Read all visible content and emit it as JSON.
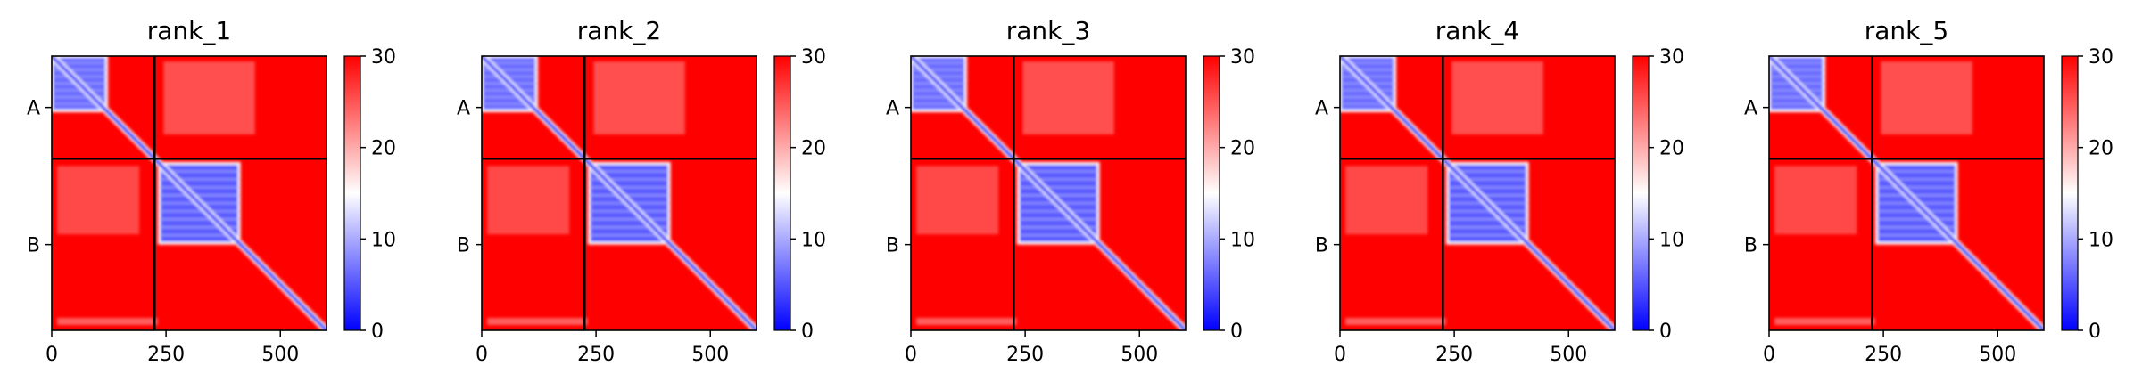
{
  "colors": {
    "low": "#0000ff",
    "mid": "#ffffff",
    "high": "#ff0000",
    "chain_line": "#000000"
  },
  "chart_data": [
    {
      "type": "heatmap",
      "title": "rank_1",
      "xticks": [
        0,
        250,
        500
      ],
      "xlim": [
        0,
        601
      ],
      "yticks": [
        "A",
        "B"
      ],
      "chains": [
        {
          "name": "A",
          "start": 0,
          "end": 225
        },
        {
          "name": "B",
          "start": 225,
          "end": 601
        }
      ],
      "chain_boundary": 225,
      "colorbar": {
        "min": 0,
        "max": 30,
        "ticks": [
          0,
          10,
          20,
          30
        ]
      }
    },
    {
      "type": "heatmap",
      "title": "rank_2",
      "xticks": [
        0,
        250,
        500
      ],
      "xlim": [
        0,
        601
      ],
      "yticks": [
        "A",
        "B"
      ],
      "chains": [
        {
          "name": "A",
          "start": 0,
          "end": 225
        },
        {
          "name": "B",
          "start": 225,
          "end": 601
        }
      ],
      "chain_boundary": 225,
      "colorbar": {
        "min": 0,
        "max": 30,
        "ticks": [
          0,
          10,
          20,
          30
        ]
      }
    },
    {
      "type": "heatmap",
      "title": "rank_3",
      "xticks": [
        0,
        250,
        500
      ],
      "xlim": [
        0,
        601
      ],
      "yticks": [
        "A",
        "B"
      ],
      "chains": [
        {
          "name": "A",
          "start": 0,
          "end": 225
        },
        {
          "name": "B",
          "start": 225,
          "end": 601
        }
      ],
      "chain_boundary": 225,
      "colorbar": {
        "min": 0,
        "max": 30,
        "ticks": [
          0,
          10,
          20,
          30
        ]
      }
    },
    {
      "type": "heatmap",
      "title": "rank_4",
      "xticks": [
        0,
        250,
        500
      ],
      "xlim": [
        0,
        601
      ],
      "yticks": [
        "A",
        "B"
      ],
      "chains": [
        {
          "name": "A",
          "start": 0,
          "end": 225
        },
        {
          "name": "B",
          "start": 225,
          "end": 601
        }
      ],
      "chain_boundary": 225,
      "colorbar": {
        "min": 0,
        "max": 30,
        "ticks": [
          0,
          10,
          20,
          30
        ]
      }
    },
    {
      "type": "heatmap",
      "title": "rank_5",
      "xticks": [
        0,
        250,
        500
      ],
      "xlim": [
        0,
        601
      ],
      "yticks": [
        "A",
        "B"
      ],
      "chains": [
        {
          "name": "A",
          "start": 0,
          "end": 225
        },
        {
          "name": "B",
          "start": 225,
          "end": 601
        }
      ],
      "chain_boundary": 225,
      "colorbar": {
        "min": 0,
        "max": 30,
        "ticks": [
          0,
          10,
          20,
          30
        ]
      }
    }
  ]
}
